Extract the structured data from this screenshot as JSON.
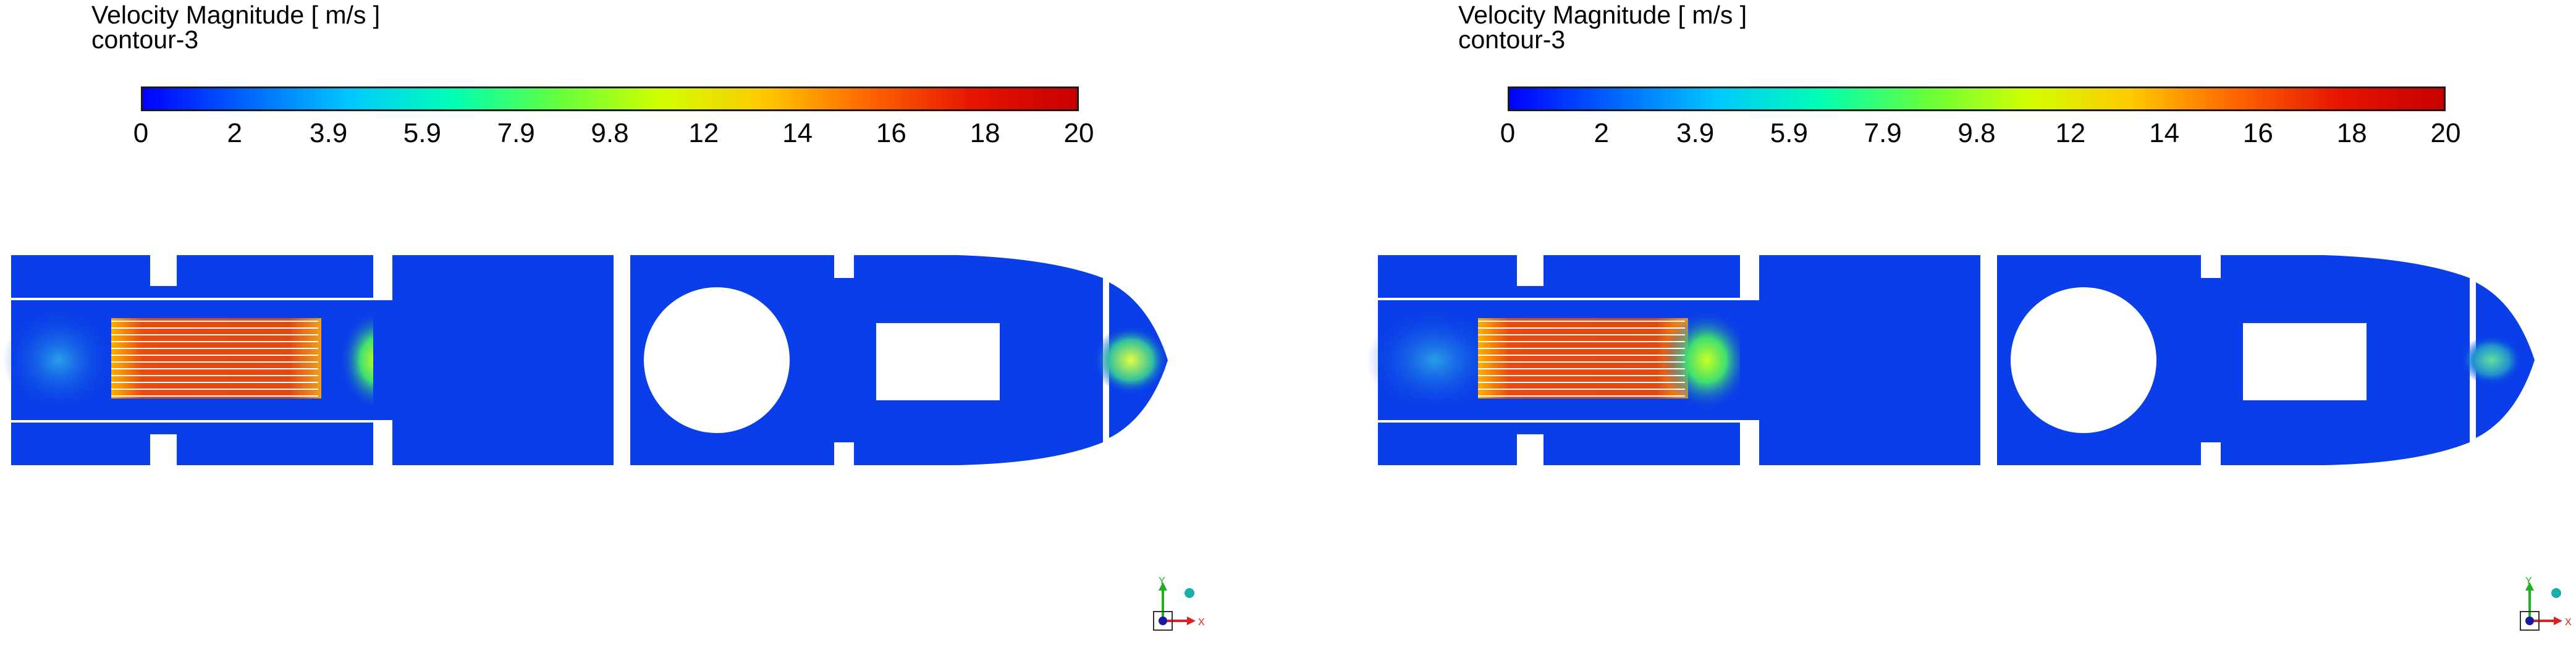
{
  "panels": [
    {
      "title": "Velocity Magnitude [ m/s ]",
      "subtitle": "contour-3",
      "colorbar": {
        "tick_labels": [
          "0",
          "2",
          "3.9",
          "5.9",
          "7.9",
          "9.8",
          "12",
          "14",
          "16",
          "18",
          "20"
        ],
        "stops": [
          "#0000ff",
          "#0064ff",
          "#00c8ff",
          "#00ffb4",
          "#64ff3c",
          "#d2ff00",
          "#ffc800",
          "#ff6400",
          "#e61400",
          "#c80000"
        ]
      },
      "axes": {
        "y_label": "Y",
        "x_label": "X"
      }
    },
    {
      "title": "Velocity Magnitude [ m/s ]",
      "subtitle": "contour-3",
      "colorbar": {
        "tick_labels": [
          "0",
          "2",
          "3.9",
          "5.9",
          "7.9",
          "9.8",
          "12",
          "14",
          "16",
          "18",
          "20"
        ],
        "stops": [
          "#0000ff",
          "#0064ff",
          "#00c8ff",
          "#00ffb4",
          "#64ff3c",
          "#d2ff00",
          "#ffc800",
          "#ff6400",
          "#e61400",
          "#c80000"
        ]
      },
      "axes": {
        "y_label": "Y",
        "x_label": "X"
      }
    }
  ],
  "colors": {
    "flow_base": "#0a3ee8",
    "flow_dark": "#0a2ad6",
    "flow_light": "#1f7ef0",
    "hot_core": "#e84a10",
    "warm": "#ffb000",
    "green": "#64e040",
    "axis_y": "#22b022",
    "axis_x": "#e02020",
    "axis_z": "#1a1aa0",
    "sphere": "#18b0a8"
  }
}
